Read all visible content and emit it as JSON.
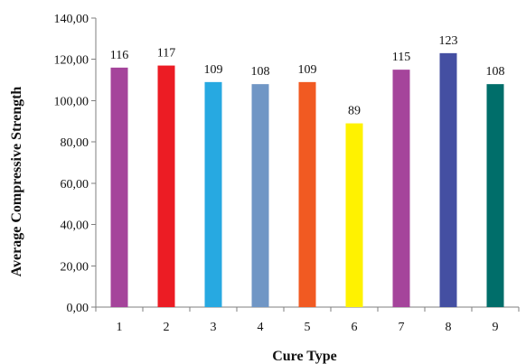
{
  "chart_data": {
    "type": "bar",
    "title": "",
    "xlabel": "Cure Type",
    "ylabel": "Average Compressive Strength",
    "ylim": [
      0,
      140
    ],
    "yticks": [
      0,
      20,
      40,
      60,
      80,
      100,
      120,
      140
    ],
    "ytick_labels": [
      "0,00",
      "20,00",
      "40,00",
      "60,00",
      "80,00",
      "100,00",
      "120,00",
      "140,00"
    ],
    "categories": [
      "1",
      "2",
      "3",
      "4",
      "5",
      "6",
      "7",
      "8",
      "9"
    ],
    "values": [
      116,
      117,
      109,
      108,
      109,
      89,
      115,
      123,
      108
    ],
    "data_labels": [
      "116",
      "117",
      "109",
      "108",
      "109",
      "89",
      "115",
      "123",
      "108"
    ],
    "colors": [
      "#A5449B",
      "#EC1C24",
      "#27A9E1",
      "#7096C5",
      "#F15A22",
      "#FFF200",
      "#A5449B",
      "#444FA2",
      "#006E6A"
    ],
    "grid": false,
    "legend": "none"
  }
}
